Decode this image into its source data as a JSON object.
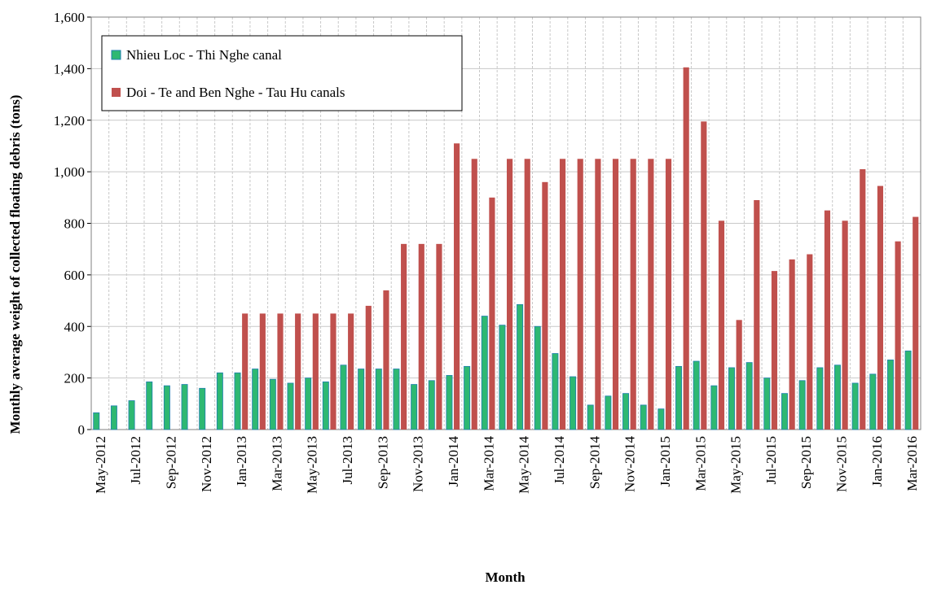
{
  "chart_data": {
    "type": "bar",
    "ylabel": "Monthly  average weight  of  collected floating  debris  (tons)",
    "xlabel": "Month",
    "categories": [
      "May-2012",
      null,
      "Jul-2012",
      null,
      "Sep-2012",
      null,
      "Nov-2012",
      null,
      "Jan-2013",
      null,
      "Mar-2013",
      null,
      "May-2013",
      null,
      "Jul-2013",
      null,
      "Sep-2013",
      null,
      "Nov-2013",
      null,
      "Jan-2014",
      null,
      "Mar-2014",
      null,
      "May-2014",
      null,
      "Jul-2014",
      null,
      "Sep-2014",
      null,
      "Nov-2014",
      null,
      "Jan-2015",
      null,
      "Mar-2015",
      null,
      "May-2015",
      null,
      "Jul-2015",
      null,
      "Sep-2015",
      null,
      "Nov-2015",
      null,
      "Jan-2016",
      null,
      "Mar-2016"
    ],
    "series": [
      {
        "name": "Nhieu Loc - Thi Nghe canal",
        "color": "#2eb872",
        "values": [
          65,
          92,
          112,
          185,
          170,
          175,
          160,
          220,
          220,
          235,
          195,
          180,
          200,
          185,
          250,
          235,
          235,
          235,
          175,
          190,
          210,
          245,
          440,
          405,
          485,
          400,
          295,
          205,
          95,
          130,
          140,
          95,
          80,
          245,
          265,
          170,
          240,
          260,
          200,
          140,
          190,
          240,
          250,
          180,
          215,
          270,
          305
        ]
      },
      {
        "name": "Doi - Te and Ben Nghe - Tau Hu canals",
        "color": "#c0504d",
        "values": [
          null,
          null,
          null,
          null,
          null,
          null,
          null,
          null,
          450,
          450,
          450,
          450,
          450,
          450,
          450,
          480,
          540,
          720,
          720,
          720,
          1110,
          1050,
          900,
          1050,
          1050,
          960,
          1050,
          1050,
          1050,
          1050,
          1050,
          1050,
          1050,
          1405,
          1195,
          810,
          425,
          890,
          615,
          660,
          680,
          850,
          810,
          1010,
          945,
          730,
          825
        ]
      }
    ],
    "ylim": [
      0,
      1600
    ],
    "yticks": [
      0,
      {
        "value": 200,
        "label": "200"
      },
      400,
      600,
      800,
      {
        "value": 1000,
        "label": "1,000"
      },
      {
        "value": 1200,
        "label": "1,200"
      },
      {
        "value": 1400,
        "label": "1,400"
      },
      {
        "value": 1600,
        "label": "1,600"
      }
    ],
    "grid": true,
    "legend": "upper left"
  }
}
